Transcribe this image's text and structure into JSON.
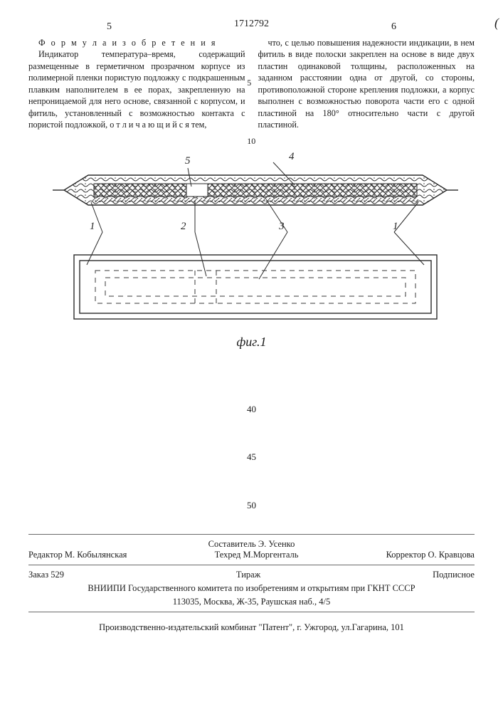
{
  "header": {
    "page_left": "5",
    "page_right": "6",
    "doc_number": "1712792",
    "paren": "("
  },
  "text": {
    "formula_heading": "Ф о р м у л а и з о б р е т е н и я",
    "left_paragraph": "Индикатор температура–время, содержащий размещенные в герметичном прозрачном корпусе из полимерной пленки пористую подложку с подкрашенным плавким наполнителем в ее порах, закрепленную на непроницаемой для него основе, связанной с корпусом, и фитиль, установленный с возможностью контакта с пористой подложкой, о т л и ч а ю щ и й с я тем,",
    "right_paragraph": "что, с целью повышения надежности индикации, в нем фитиль в виде полоски закреплен на основе в виде двух пластин одинаковой толщины, расположенных на заданном расстоянии одна от другой, со стороны, противоположной стороне крепления подложки, а корпус выполнен с возможностью поворота части его с одной пластиной на 180° относительно части с другой пластиной.",
    "line5": "5",
    "line10": "10"
  },
  "figure": {
    "caption": "фиг.1",
    "labels": {
      "l1a": "1",
      "l2": "2",
      "l3": "3",
      "l1b": "1",
      "l4": "4",
      "l5": "5"
    },
    "colors": {
      "ink": "#2a2a2a",
      "hatch": "#3a3a3a",
      "dashed": "#3a3a3a",
      "leader": "#2a2a2a",
      "bg": "#ffffff"
    },
    "stroke_main": 1.4,
    "stroke_thin": 1.0,
    "dash": "7 6"
  },
  "markers": {
    "m40": "40",
    "m45": "45",
    "m50": "50"
  },
  "credits": {
    "compiler": "Составитель Э. Усенко",
    "editor": "Редактор М. Кобылянская",
    "techred": "Техред М.Моргенталь",
    "corrector": "Корректор О. Кравцова",
    "order": "Заказ 529",
    "tirazh": "Тираж",
    "subscribed": "Подписное",
    "institution": "ВНИИПИ Государственного комитета по изобретениям и открытиям при ГКНТ СССР",
    "address": "113035, Москва, Ж-35, Раушская наб., 4/5",
    "footer": "Производственно-издательский комбинат \"Патент\", г. Ужгород, ул.Гагарина, 101"
  }
}
